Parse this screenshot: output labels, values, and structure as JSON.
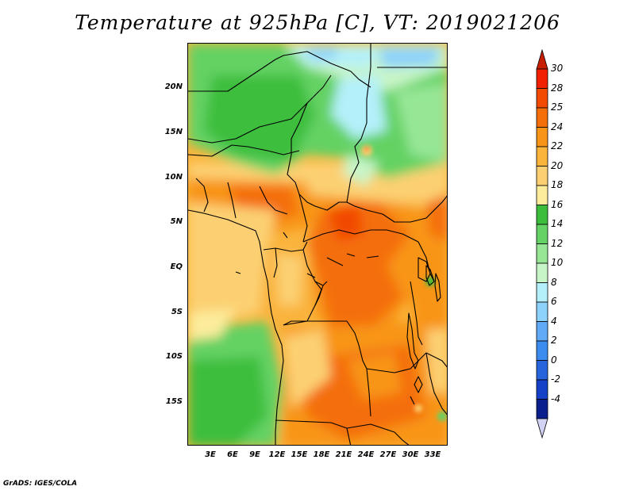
{
  "title": "Temperature at 925hPa [C], VT: 2019021206",
  "footer": "GrADS: IGES/COLA",
  "map": {
    "variable": "Temperature at 925hPa",
    "unit": "C",
    "valid_time": "2019021206",
    "region": "Central Africa",
    "lat_range": [
      -19.5,
      24
    ],
    "lon_range": [
      0,
      35
    ]
  },
  "lat_labels": [
    "20N",
    "15N",
    "10N",
    "5N",
    "EQ",
    "5S",
    "10S",
    "15S"
  ],
  "lon_labels": [
    "3E",
    "6E",
    "9E",
    "12E",
    "15E",
    "18E",
    "21E",
    "24E",
    "27E",
    "30E",
    "33E"
  ],
  "colorbar": {
    "labels": [
      "30",
      "28",
      "25",
      "24",
      "22",
      "20",
      "18",
      "16",
      "14",
      "12",
      "10",
      "8",
      "6",
      "4",
      "2",
      "0",
      "-2",
      "-4"
    ],
    "colors": [
      "#f02000",
      "#f24a00",
      "#f46e0a",
      "#f89418",
      "#fab43c",
      "#fcd072",
      "#fcec9c",
      "#3cbe3c",
      "#64d264",
      "#96e696",
      "#c8f5c8",
      "#b4f0fa",
      "#8cd2fa",
      "#60aaf8",
      "#3c8cf0",
      "#2864dc",
      "#1441c8",
      "#0a1e8c"
    ],
    "top_triangle_color": "#c81e00",
    "bottom_triangle_color": "#d2d2f5"
  }
}
